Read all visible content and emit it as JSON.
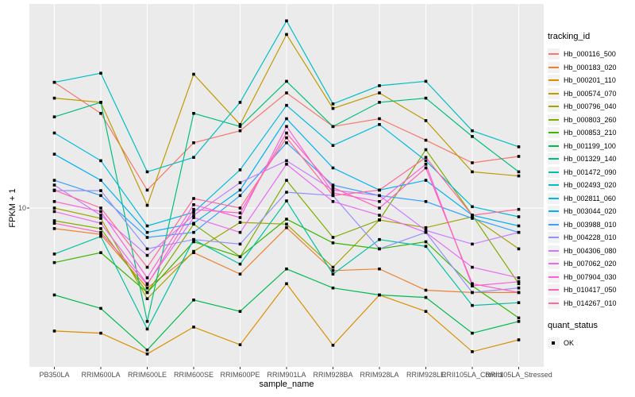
{
  "chart_data": {
    "type": "line",
    "title": "",
    "xlabel": "sample_name",
    "ylabel": "FPKM + 1",
    "y_scale": "log10",
    "yticks": [
      "10"
    ],
    "ylim_log": [
      1.05,
      170
    ],
    "grid": "vertical category gridlines + horizontal line at 10, white on gray panel",
    "legend_position": "right",
    "categories": [
      "PB350LA",
      "RRIM600LA",
      "RRIM600LE",
      "RRIM600SE",
      "RRIM600PE",
      "RRIM901LA",
      "RRIM928BA",
      "RRIM928LA",
      "RRIM928LE",
      "RRII105LA_Control",
      "RRII105LA_Stressed"
    ],
    "series": [
      {
        "name": "Hb_000116_500",
        "color": "#F8766D",
        "values": [
          63,
          40,
          13,
          26,
          31,
          54,
          33,
          37,
          27,
          19.4,
          21.3
        ]
      },
      {
        "name": "Hb_000183_020",
        "color": "#EA8331",
        "values": [
          7.4,
          6.8,
          3.1,
          5.2,
          3.8,
          7.5,
          4.0,
          4.1,
          3.0,
          2.9,
          2.9
        ]
      },
      {
        "name": "Hb_000201_110",
        "color": "#D89000",
        "values": [
          1.65,
          1.6,
          1.18,
          1.75,
          1.35,
          3.3,
          1.34,
          2.8,
          2.2,
          1.22,
          1.45
        ]
      },
      {
        "name": "Hb_000574_070",
        "color": "#C09B00",
        "values": [
          50,
          47,
          10.4,
          71,
          34,
          127,
          43,
          54,
          36,
          17,
          16
        ]
      },
      {
        "name": "Hb_000796_040",
        "color": "#A3A500",
        "values": [
          10,
          8.6,
          2.65,
          5.3,
          8.1,
          7.9,
          4.2,
          8.4,
          7.5,
          8.8,
          5.5
        ]
      },
      {
        "name": "Hb_000803_260",
        "color": "#7CAE00",
        "values": [
          8.3,
          7.4,
          2.9,
          7.9,
          4.9,
          15,
          6.5,
          8.4,
          23.5,
          9.0,
          3.3
        ]
      },
      {
        "name": "Hb_000853_210",
        "color": "#39B600",
        "values": [
          4.5,
          5.2,
          2.9,
          6.1,
          4.9,
          8.5,
          6.0,
          5.5,
          6.1,
          3.2,
          2.0
        ]
      },
      {
        "name": "Hb_001199_100",
        "color": "#00BB4E",
        "values": [
          2.8,
          2.3,
          1.25,
          2.6,
          2.2,
          4.1,
          3.1,
          2.8,
          2.7,
          1.6,
          1.9
        ]
      },
      {
        "name": "Hb_001329_140",
        "color": "#00BF7D",
        "values": [
          38,
          47,
          1.9,
          40,
          33,
          64,
          33,
          47,
          50,
          28.5,
          17
        ]
      },
      {
        "name": "Hb_001472_090",
        "color": "#00C1A3",
        "values": [
          5.1,
          6.6,
          1.7,
          6.3,
          4.4,
          11.1,
          3.8,
          6.3,
          5.7,
          2.4,
          2.5
        ]
      },
      {
        "name": "Hb_002493_020",
        "color": "#00BFC4",
        "values": [
          63,
          72,
          17,
          21,
          47,
          155,
          46,
          60,
          64,
          31,
          24.5
        ]
      },
      {
        "name": "Hb_002811_060",
        "color": "#00BAE0",
        "values": [
          30,
          20,
          7.7,
          9.4,
          17.5,
          45,
          25,
          34,
          20,
          10.2,
          8.8
        ]
      },
      {
        "name": "Hb_003044_020",
        "color": "#00B0F6",
        "values": [
          22,
          15,
          7.0,
          8.0,
          13,
          37,
          18,
          13,
          15,
          9.0,
          7.7
        ]
      },
      {
        "name": "Hb_003988_010",
        "color": "#35A2FF",
        "values": [
          15,
          12,
          6.5,
          7.0,
          12,
          26,
          14,
          12,
          11,
          8.6,
          7.0
        ]
      },
      {
        "name": "Hb_004228_010",
        "color": "#9590FF",
        "values": [
          12.9,
          12.9,
          5.5,
          6.3,
          5.9,
          12.6,
          12,
          5.5,
          7.0,
          2.9,
          3.1
        ]
      },
      {
        "name": "Hb_004306_080",
        "color": "#C77CFF",
        "values": [
          14,
          9.0,
          5.0,
          9.0,
          14.5,
          20,
          13,
          12,
          7.2,
          5.9,
          7.0
        ]
      },
      {
        "name": "Hb_007062_020",
        "color": "#E76BF3",
        "values": [
          9.5,
          8.0,
          3.3,
          8.7,
          7.0,
          19,
          11,
          9.0,
          7.0,
          4.2,
          3.6
        ]
      },
      {
        "name": "Hb_007904_030",
        "color": "#FA62DB",
        "values": [
          11,
          9.5,
          3.6,
          10.5,
          8.7,
          33,
          12.5,
          11,
          19,
          3.2,
          3.4
        ]
      },
      {
        "name": "Hb_010417_050",
        "color": "#FF62BC",
        "values": [
          8.0,
          7.0,
          3.26,
          9.8,
          9.3,
          30,
          13.5,
          10,
          18,
          3.3,
          2.9
        ]
      },
      {
        "name": "Hb_014267_010",
        "color": "#FF6A98",
        "values": [
          13,
          10,
          4.2,
          11.5,
          10,
          28,
          12,
          13,
          21,
          9.0,
          9.8
        ]
      }
    ]
  },
  "legend": {
    "tracking_title": "tracking_id",
    "quant_title": "quant_status",
    "quant_items": [
      {
        "label": "OK",
        "marker": "black-square-point"
      }
    ]
  },
  "axes": {
    "y_title": "FPKM + 1",
    "x_title": "sample_name",
    "y_tick_labels": [
      "10"
    ]
  },
  "colors": {
    "panel_background": "#EBEBEB",
    "gridline": "#FFFFFF",
    "axis_text": "#4D4D4D",
    "point": "#000000",
    "legend_key_background": "#F2F2F2"
  }
}
